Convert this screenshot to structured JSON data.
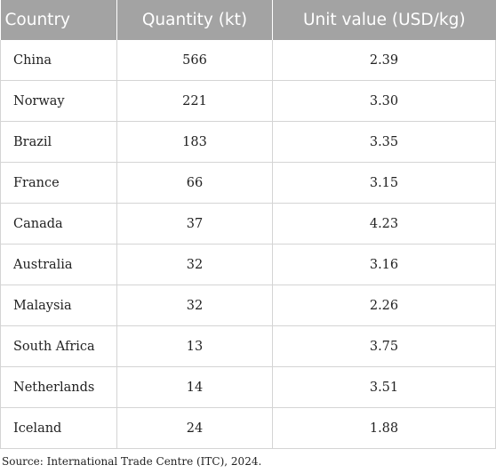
{
  "table": {
    "headers": [
      "Country",
      "Quantity (kt)",
      "Unit value (USD/kg)"
    ],
    "rows": [
      {
        "country": "China",
        "quantity": "566",
        "unit_value": "2.39"
      },
      {
        "country": "Norway",
        "quantity": "221",
        "unit_value": "3.30"
      },
      {
        "country": "Brazil",
        "quantity": "183",
        "unit_value": "3.35"
      },
      {
        "country": "France",
        "quantity": "66",
        "unit_value": "3.15"
      },
      {
        "country": "Canada",
        "quantity": "37",
        "unit_value": "4.23"
      },
      {
        "country": "Australia",
        "quantity": "32",
        "unit_value": "3.16"
      },
      {
        "country": "Malaysia",
        "quantity": "32",
        "unit_value": "2.26"
      },
      {
        "country": "South Africa",
        "quantity": "13",
        "unit_value": "3.75"
      },
      {
        "country": "Netherlands",
        "quantity": "14",
        "unit_value": "3.51"
      },
      {
        "country": "Iceland",
        "quantity": "24",
        "unit_value": "1.88"
      }
    ]
  },
  "source": "Source: International Trade Centre (ITC), 2024.",
  "colors": {
    "header_bg": "#a3a3a3",
    "header_text": "#ffffff",
    "grid": "#d4d4d4"
  }
}
